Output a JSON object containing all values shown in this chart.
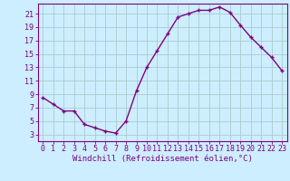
{
  "hours": [
    0,
    1,
    2,
    3,
    4,
    5,
    6,
    7,
    8,
    9,
    10,
    11,
    12,
    13,
    14,
    15,
    16,
    17,
    18,
    19,
    20,
    21,
    22,
    23
  ],
  "values": [
    8.5,
    7.5,
    6.5,
    6.5,
    4.5,
    4.0,
    3.5,
    3.2,
    5.0,
    9.5,
    13.0,
    15.5,
    18.0,
    20.5,
    21.0,
    21.5,
    21.5,
    22.0,
    21.2,
    19.3,
    17.5,
    16.0,
    14.5,
    12.5
  ],
  "line_color": "#800080",
  "marker": "+",
  "marker_size": 3,
  "bg_color": "#cceeff",
  "grid_color": "#aacccc",
  "xlabel": "Windchill (Refroidissement éolien,°C)",
  "xlabel_fontsize": 6.5,
  "ytick_labels": [
    "3",
    "5",
    "7",
    "9",
    "11",
    "13",
    "15",
    "17",
    "19",
    "21"
  ],
  "ytick_values": [
    3,
    5,
    7,
    9,
    11,
    13,
    15,
    17,
    19,
    21
  ],
  "ylim": [
    2.0,
    22.5
  ],
  "xlim": [
    -0.5,
    23.5
  ],
  "xtick_values": [
    0,
    1,
    2,
    3,
    4,
    5,
    6,
    7,
    8,
    9,
    10,
    11,
    12,
    13,
    14,
    15,
    16,
    17,
    18,
    19,
    20,
    21,
    22,
    23
  ],
  "tick_fontsize": 6.0,
  "line_width": 1.0,
  "marker_edge_width": 1.0
}
